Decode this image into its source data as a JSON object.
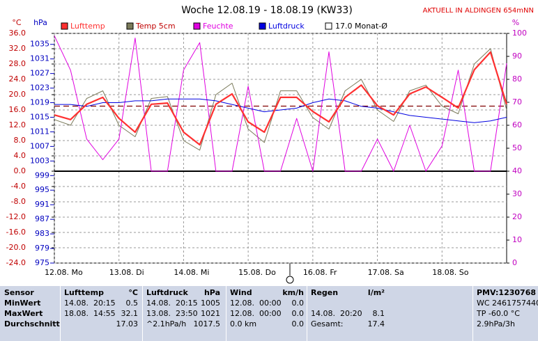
{
  "chart_data": {
    "type": "line",
    "title": "Woche 12.08.19 - 18.08.19 (KW33)",
    "annotation": "AKTUELL IN ALDINGEN 654mNN",
    "ylabel": "°C",
    "y2label": "hPa",
    "y3label": "%",
    "categories": [
      "12.08. Mo",
      null,
      null,
      null,
      "13.08. Di",
      null,
      null,
      null,
      "14.08. Mi",
      null,
      null,
      null,
      "15.08. Do",
      null,
      null,
      null,
      "16.08. Fr",
      null,
      null,
      null,
      "17.08. Sa",
      null,
      null,
      null,
      "18.08. So",
      null,
      null,
      null,
      null
    ],
    "series": [
      {
        "name": "Lufttemp",
        "color": "#ff3030",
        "axis": "y",
        "width": 2.2,
        "values": [
          14.7,
          13.5,
          17.5,
          19.3,
          13.8,
          10.2,
          17.5,
          17.8,
          10.2,
          6.9,
          17.5,
          20.2,
          12.9,
          10.2,
          19.3,
          19.3,
          15.6,
          12.9,
          19.3,
          22.5,
          17.1,
          14.7,
          20.2,
          22,
          19.3,
          16.5,
          26.5,
          31.1,
          17.5
        ]
      },
      {
        "name": "Temp 5cm",
        "color": "#7a7a5a",
        "axis": "y",
        "width": 1,
        "values": [
          13.5,
          12,
          19,
          21,
          12,
          9,
          19,
          19.5,
          8,
          5.5,
          20,
          23,
          11,
          7.5,
          21,
          21,
          14,
          11,
          21,
          24,
          16,
          13,
          21,
          22.5,
          17,
          15,
          28,
          32,
          16
        ]
      },
      {
        "name": "Feuchte",
        "color": "#e000e0",
        "axis": "y3",
        "width": 1,
        "values": [
          99,
          84,
          54,
          45,
          54,
          98,
          40,
          40,
          84,
          96,
          40,
          40,
          77,
          40,
          40,
          63,
          40,
          92,
          40,
          40,
          54,
          40,
          60,
          40,
          51,
          84,
          40,
          40,
          87
        ]
      },
      {
        "name": "Luftdruck",
        "color": "#0000e0",
        "axis": "y2",
        "width": 1,
        "values": [
          1018.5,
          1018.5,
          1018,
          1019,
          1019,
          1019.5,
          1019.5,
          1020,
          1020,
          1020,
          1019.5,
          1018.5,
          1017.5,
          1016.5,
          1017,
          1017.5,
          1019,
          1020,
          1019.5,
          1018,
          1017.5,
          1016.5,
          1015.5,
          1015,
          1014.5,
          1014,
          1013.5,
          1014,
          1015
        ]
      }
    ],
    "mean_line": {
      "name": "17.0 Monat-Ø",
      "value": 17,
      "color": "#800000"
    },
    "ylim": [
      -24,
      36
    ],
    "yticks": [
      {
        "value": -24,
        "label": "-24.0"
      },
      {
        "value": -20,
        "label": "-20.0"
      },
      {
        "value": -16,
        "label": "-16.0"
      },
      {
        "value": -12,
        "label": "-12.0"
      },
      {
        "value": -8,
        "label": "-8.0"
      },
      {
        "value": -4,
        "label": "-4.0"
      },
      {
        "value": 0,
        "label": "0.0"
      },
      {
        "value": 4,
        "label": "4.0"
      },
      {
        "value": 8,
        "label": "8.0"
      },
      {
        "value": 12,
        "label": "12.0"
      },
      {
        "value": 16,
        "label": "16.0"
      },
      {
        "value": 20,
        "label": "20.0"
      },
      {
        "value": 24,
        "label": "24.0"
      },
      {
        "value": 28,
        "label": "28.0"
      },
      {
        "value": 32,
        "label": "32.0"
      },
      {
        "value": 36,
        "label": "36.0"
      }
    ],
    "y2lim": [
      975,
      1038
    ],
    "y2ticks": [
      975,
      979,
      983,
      987,
      991,
      995,
      999,
      1003,
      1007,
      1011,
      1015,
      1019,
      1023,
      1027,
      1031,
      1035
    ],
    "y3lim": [
      0,
      100
    ],
    "y3ticks": [
      0,
      10,
      20,
      30,
      40,
      50,
      60,
      70,
      80,
      90,
      100
    ],
    "grid": true
  },
  "table": {
    "row_labels": [
      "Sensor",
      "MinWert",
      "MaxWert",
      "Durchschnitt"
    ],
    "blocks": [
      {
        "name": "Lufttemp",
        "unit": "°C",
        "rows": [
          {
            "time": "14.08.  20:15",
            "value": "0.5"
          },
          {
            "time": "18.08.  14:55",
            "value": "32.1"
          },
          {
            "value": "17.03"
          }
        ]
      },
      {
        "name": "Luftdruck",
        "unit": "hPa",
        "rows": [
          {
            "time": "14.08.  20:15",
            "value": "1005"
          },
          {
            "time": "13.08.  23:50",
            "value": "1021"
          },
          {
            "time": "^2.1hPa/h",
            "value": "1017.5"
          }
        ]
      },
      {
        "name": "Wind",
        "unit": "km/h",
        "rows": [
          {
            "time": "12.08.  00:00",
            "value": "0.0"
          },
          {
            "time": "12.08.  00:00",
            "value": "0.0"
          },
          {
            "time": "0.0 km",
            "value": "0.0"
          }
        ]
      },
      {
        "name": "Regen",
        "unit": "l/m²",
        "rows": [
          null,
          {
            "time": "14.08.  20:20",
            "value": "8.1"
          },
          {
            "time": "Gesamt:",
            "value": "17.4"
          }
        ]
      }
    ],
    "info": [
      "PMV:1230768",
      "WC 2461757440",
      "TP -60.0 °C",
      "2.9hPa/3h"
    ]
  }
}
